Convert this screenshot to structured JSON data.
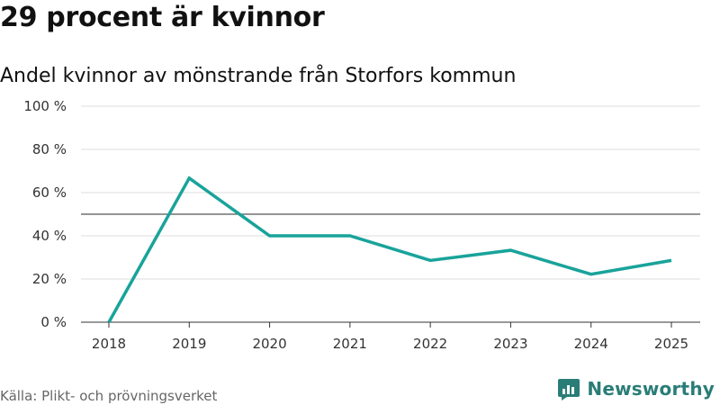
{
  "title": "29 procent är kvinnor",
  "subtitle": "Andel kvinnor av mönstrande från Storfors kommun",
  "source": "Källa: Plikt- och prövningsverket",
  "brand": {
    "name": "Newsworthy",
    "icon": "newsworthy-logo-icon",
    "color": "#2a7d77"
  },
  "colors": {
    "line": "#19a39a",
    "grid": "#dddddd",
    "reference": "#555555",
    "axis": "#333333"
  },
  "chart_data": {
    "type": "line",
    "title": "29 procent är kvinnor",
    "subtitle": "Andel kvinnor av mönstrande från Storfors kommun",
    "xlabel": "",
    "ylabel": "",
    "x": [
      "2018",
      "2019",
      "2020",
      "2021",
      "2022",
      "2023",
      "2024",
      "2025"
    ],
    "series": [
      {
        "name": "Andel kvinnor",
        "values": [
          0,
          66.7,
          40,
          40,
          28.6,
          33.3,
          22.2,
          28.6
        ]
      }
    ],
    "reference_line": 50,
    "ylim": [
      0,
      100
    ],
    "yticks": [
      0,
      20,
      40,
      60,
      80,
      100
    ],
    "ytick_labels": [
      "0 %",
      "20 %",
      "40 %",
      "60 %",
      "80 %",
      "100 %"
    ],
    "grid": true
  }
}
